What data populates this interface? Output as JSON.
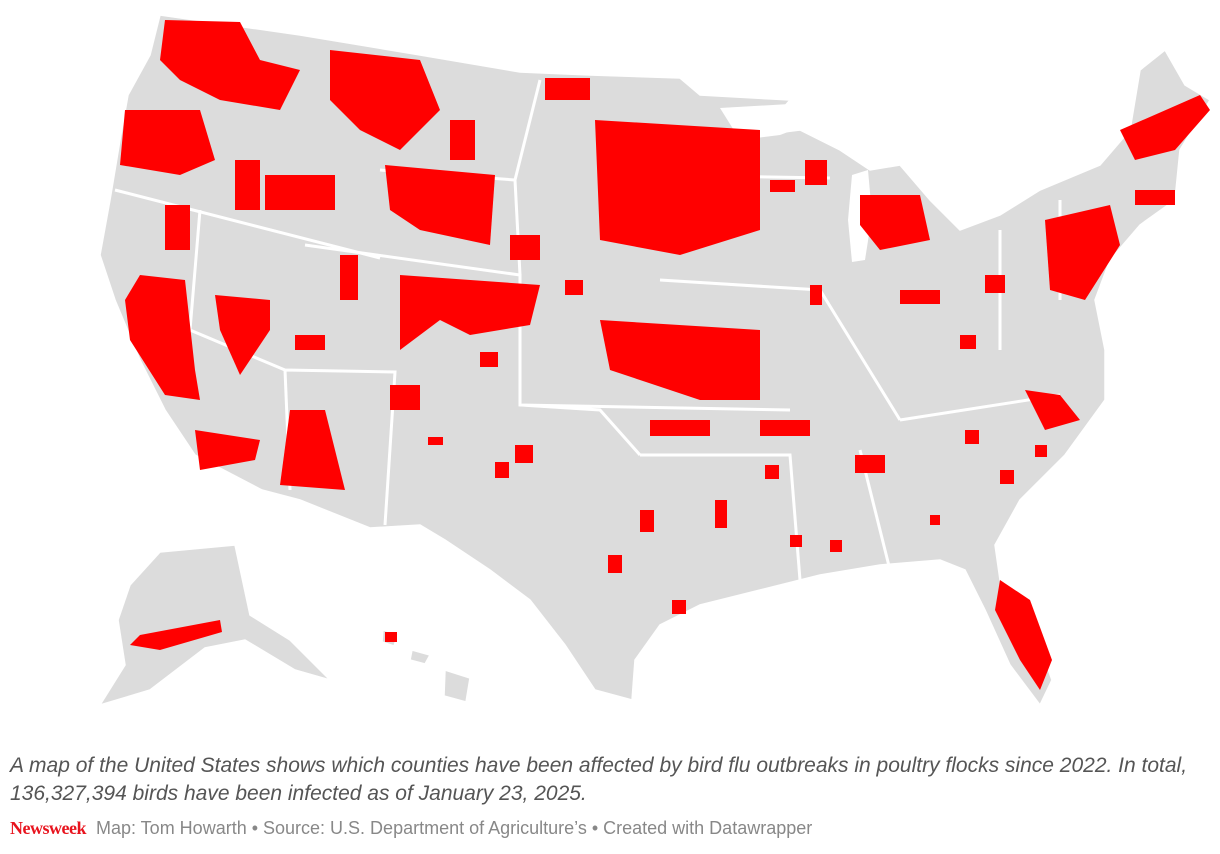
{
  "caption": "A map of the United States shows which counties have been affected by bird flu outbreaks in poultry flocks since 2022. In total, 136,327,394 birds have been infected as of January 23, 2025.",
  "footer": {
    "brand": "Newsweek",
    "credits": "Map: Tom Howarth • Source: U.S. Department of Agriculture’s • Created with Datawrapper"
  }
}
